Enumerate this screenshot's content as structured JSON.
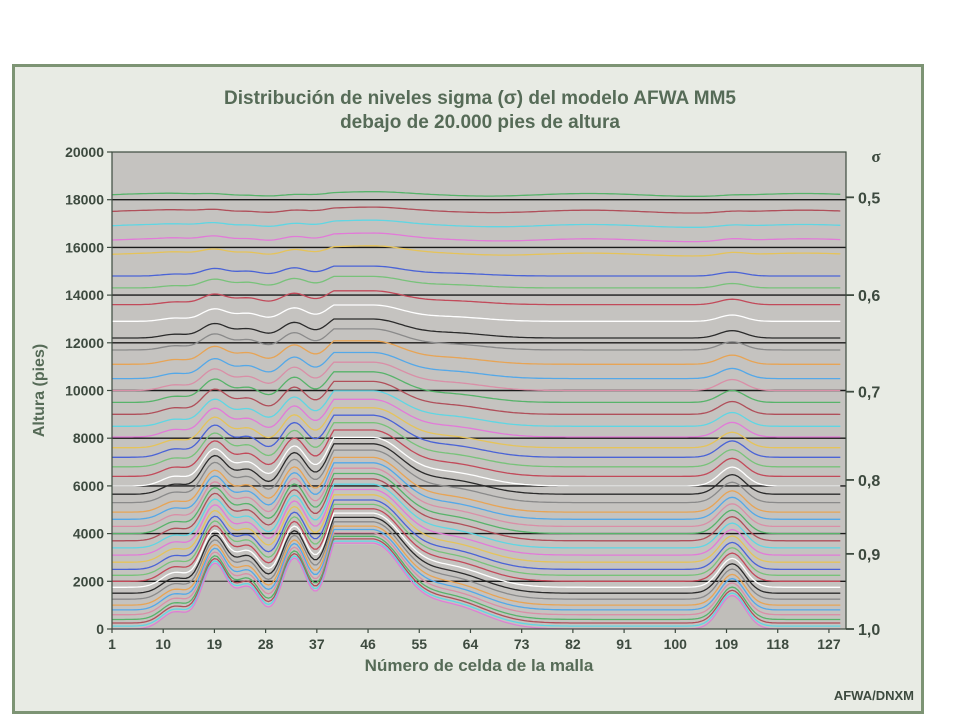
{
  "chart_data": {
    "type": "line",
    "title": "Distribución de niveles sigma (σ) del modelo AFWA MM5",
    "subtitle": "debajo de 20.000 pies de altura",
    "xlabel": "Número de celda de la malla",
    "ylabel": "Altura (pies)",
    "right_axis_label": "σ",
    "xlim": [
      1,
      130
    ],
    "ylim": [
      0,
      20000
    ],
    "x_ticks": [
      1,
      10,
      19,
      28,
      37,
      46,
      55,
      64,
      73,
      82,
      91,
      100,
      109,
      118,
      127
    ],
    "y_ticks": [
      0,
      2000,
      4000,
      6000,
      8000,
      10000,
      12000,
      14000,
      16000,
      18000,
      20000
    ],
    "y_tick_labels": [
      "0",
      "2000",
      "4000",
      "6000",
      "8000",
      "10000",
      "12000",
      "14000",
      "16000",
      "18000",
      "20000"
    ],
    "sigma_ticks": [
      {
        "label": "0,5",
        "height": 18100
      },
      {
        "label": "0,6",
        "height": 14000
      },
      {
        "label": "0,7",
        "height": 9950
      },
      {
        "label": "0,8",
        "height": 6250
      },
      {
        "label": "0,9",
        "height": 3150
      },
      {
        "label": "1,0",
        "height": 0
      }
    ],
    "terrain_peaks": [
      {
        "cell": 12,
        "height": 700
      },
      {
        "cell": 19,
        "height": 2700
      },
      {
        "cell": 25,
        "height": 1700
      },
      {
        "cell": 33,
        "height": 2900
      },
      {
        "cell": 41,
        "height": 2600
      },
      {
        "cell": 47,
        "height": 3400
      },
      {
        "cell": 60,
        "height": 1000
      },
      {
        "cell": 110,
        "height": 1400
      }
    ],
    "level_base_heights": [
      18200,
      17500,
      16900,
      16300,
      15700,
      14800,
      14300,
      13600,
      12900,
      12200,
      11700,
      11100,
      10500,
      10000,
      9500,
      9000,
      8500,
      8050,
      7600,
      7200,
      6800,
      6400,
      6000,
      5650,
      5300,
      4900,
      4600,
      4300,
      4000,
      3700,
      3400,
      3100,
      2800,
      2500,
      2250,
      2000,
      1750,
      1500,
      1250,
      1000,
      800,
      600,
      400,
      250,
      120,
      0
    ],
    "grid": true,
    "legend": "none"
  },
  "credit": "AFWA/DNXM",
  "colors": {
    "plot_background": "#c5c3c0",
    "frame_background": "#e8ebe4",
    "frame_border": "#7d9474",
    "title": "#566b57",
    "axis_text": "#3d4a3f",
    "gridline": "#1a1a1a",
    "series_palette": [
      "#57b36a",
      "#b04f5a",
      "#5fd6e3",
      "#e27ad8",
      "#e5c35a",
      "#4a63d6",
      "#78c27a",
      "#c24a5a",
      "#ffffff",
      "#2b2b2b",
      "#8a8a8a",
      "#e7a455",
      "#54a8e8",
      "#d98fa7"
    ]
  }
}
